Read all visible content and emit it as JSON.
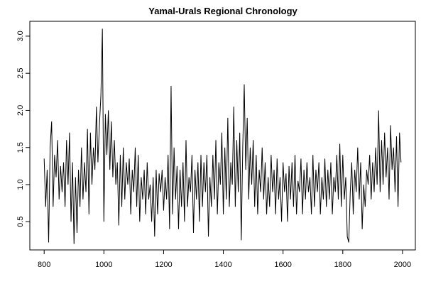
{
  "chart_data": {
    "type": "line",
    "title": "Yamal-Urals Regional Chronology",
    "x": [
      800,
      805,
      810,
      815,
      820,
      825,
      830,
      835,
      840,
      845,
      850,
      855,
      860,
      865,
      870,
      875,
      880,
      885,
      890,
      895,
      900,
      905,
      910,
      915,
      920,
      925,
      930,
      935,
      940,
      945,
      950,
      955,
      960,
      965,
      970,
      975,
      980,
      985,
      990,
      995,
      1000,
      1005,
      1010,
      1015,
      1020,
      1025,
      1030,
      1035,
      1040,
      1045,
      1050,
      1055,
      1060,
      1065,
      1070,
      1075,
      1080,
      1085,
      1090,
      1095,
      1100,
      1105,
      1110,
      1115,
      1120,
      1125,
      1130,
      1135,
      1140,
      1145,
      1150,
      1155,
      1160,
      1165,
      1170,
      1175,
      1180,
      1185,
      1190,
      1195,
      1200,
      1205,
      1210,
      1215,
      1220,
      1225,
      1230,
      1235,
      1240,
      1245,
      1250,
      1255,
      1260,
      1265,
      1270,
      1275,
      1280,
      1285,
      1290,
      1295,
      1300,
      1305,
      1310,
      1315,
      1320,
      1325,
      1330,
      1335,
      1340,
      1345,
      1350,
      1355,
      1360,
      1365,
      1370,
      1375,
      1380,
      1385,
      1390,
      1395,
      1400,
      1405,
      1410,
      1415,
      1420,
      1425,
      1430,
      1435,
      1440,
      1445,
      1450,
      1455,
      1460,
      1465,
      1470,
      1475,
      1480,
      1485,
      1490,
      1495,
      1500,
      1505,
      1510,
      1515,
      1520,
      1525,
      1530,
      1535,
      1540,
      1545,
      1550,
      1555,
      1560,
      1565,
      1570,
      1575,
      1580,
      1585,
      1590,
      1595,
      1600,
      1605,
      1610,
      1615,
      1620,
      1625,
      1630,
      1635,
      1640,
      1645,
      1650,
      1655,
      1660,
      1665,
      1670,
      1675,
      1680,
      1685,
      1690,
      1695,
      1700,
      1705,
      1710,
      1715,
      1720,
      1725,
      1730,
      1735,
      1740,
      1745,
      1750,
      1755,
      1760,
      1765,
      1770,
      1775,
      1780,
      1785,
      1790,
      1795,
      1800,
      1805,
      1810,
      1815,
      1820,
      1825,
      1830,
      1835,
      1840,
      1845,
      1850,
      1855,
      1860,
      1865,
      1870,
      1875,
      1880,
      1885,
      1890,
      1895,
      1900,
      1905,
      1910,
      1915,
      1920,
      1925,
      1930,
      1935,
      1940,
      1945,
      1950,
      1955,
      1960,
      1965,
      1970,
      1975,
      1980,
      1985,
      1990,
      1995
    ],
    "values": [
      1.35,
      0.7,
      1.2,
      0.22,
      1.5,
      1.85,
      0.7,
      1.4,
      1.1,
      1.6,
      0.8,
      1.25,
      0.9,
      1.3,
      0.7,
      1.6,
      1.0,
      1.7,
      0.5,
      1.3,
      0.2,
      1.1,
      0.35,
      1.2,
      0.7,
      1.5,
      0.8,
      1.3,
      0.9,
      1.75,
      0.6,
      1.7,
      1.0,
      1.5,
      1.2,
      2.05,
      1.3,
      1.8,
      2.2,
      3.1,
      0.5,
      1.95,
      1.4,
      2.0,
      1.2,
      1.85,
      1.1,
      1.6,
      1.0,
      1.3,
      0.45,
      1.4,
      0.7,
      1.5,
      0.8,
      1.3,
      1.0,
      1.35,
      0.6,
      1.2,
      0.9,
      1.5,
      0.7,
      1.4,
      0.5,
      1.1,
      0.8,
      1.2,
      0.6,
      1.3,
      0.8,
      1.0,
      0.5,
      1.1,
      0.3,
      1.2,
      0.6,
      1.15,
      0.9,
      1.2,
      0.65,
      1.1,
      0.8,
      1.4,
      0.4,
      2.33,
      0.6,
      1.5,
      0.8,
      1.25,
      0.4,
      1.2,
      0.7,
      1.3,
      0.5,
      1.6,
      0.7,
      1.1,
      0.9,
      1.4,
      0.35,
      1.2,
      0.8,
      1.3,
      0.5,
      1.4,
      0.7,
      1.3,
      0.9,
      1.4,
      0.3,
      1.1,
      0.7,
      1.4,
      0.8,
      1.6,
      0.6,
      1.3,
      1.0,
      1.7,
      0.6,
      1.5,
      0.8,
      1.9,
      0.7,
      1.3,
      1.0,
      2.05,
      0.7,
      1.6,
      0.9,
      1.7,
      0.25,
      1.5,
      2.35,
      1.2,
      1.9,
      0.8,
      1.5,
      1.0,
      1.6,
      0.7,
      1.4,
      0.6,
      1.2,
      0.9,
      1.5,
      0.8,
      1.3,
      0.6,
      1.1,
      0.7,
      1.4,
      0.9,
      1.2,
      0.6,
      1.35,
      0.8,
      1.1,
      0.5,
      1.3,
      0.9,
      1.15,
      0.5,
      1.25,
      0.8,
      1.3,
      0.7,
      1.4,
      0.6,
      1.05,
      0.9,
      1.35,
      0.6,
      1.2,
      0.8,
      1.3,
      0.9,
      1.1,
      0.6,
      1.4,
      0.7,
      1.2,
      0.9,
      1.3,
      0.6,
      1.1,
      0.8,
      1.35,
      0.7,
      1.2,
      0.8,
      1.3,
      0.6,
      1.1,
      0.9,
      1.4,
      0.8,
      1.55,
      0.7,
      1.4,
      0.8,
      1.1,
      0.3,
      0.22,
      0.9,
      1.3,
      0.6,
      1.2,
      0.9,
      1.5,
      0.8,
      1.3,
      0.4,
      1.0,
      0.7,
      1.2,
      1.0,
      1.4,
      0.8,
      1.3,
      0.9,
      1.5,
      1.0,
      2.0,
      0.9,
      1.6,
      1.0,
      1.7,
      1.1,
      1.5,
      0.8,
      1.8,
      1.2,
      1.5,
      0.9,
      1.65,
      0.7,
      1.7,
      1.3
    ],
    "color": "#000000",
    "xlim": [
      752,
      2043
    ],
    "xticks": [
      800,
      1000,
      1200,
      1400,
      1600,
      1800,
      2000
    ],
    "ylim": [
      0.12,
      3.2
    ],
    "yticks": [
      0.5,
      1.0,
      1.5,
      2.0,
      2.5,
      3.0
    ]
  }
}
